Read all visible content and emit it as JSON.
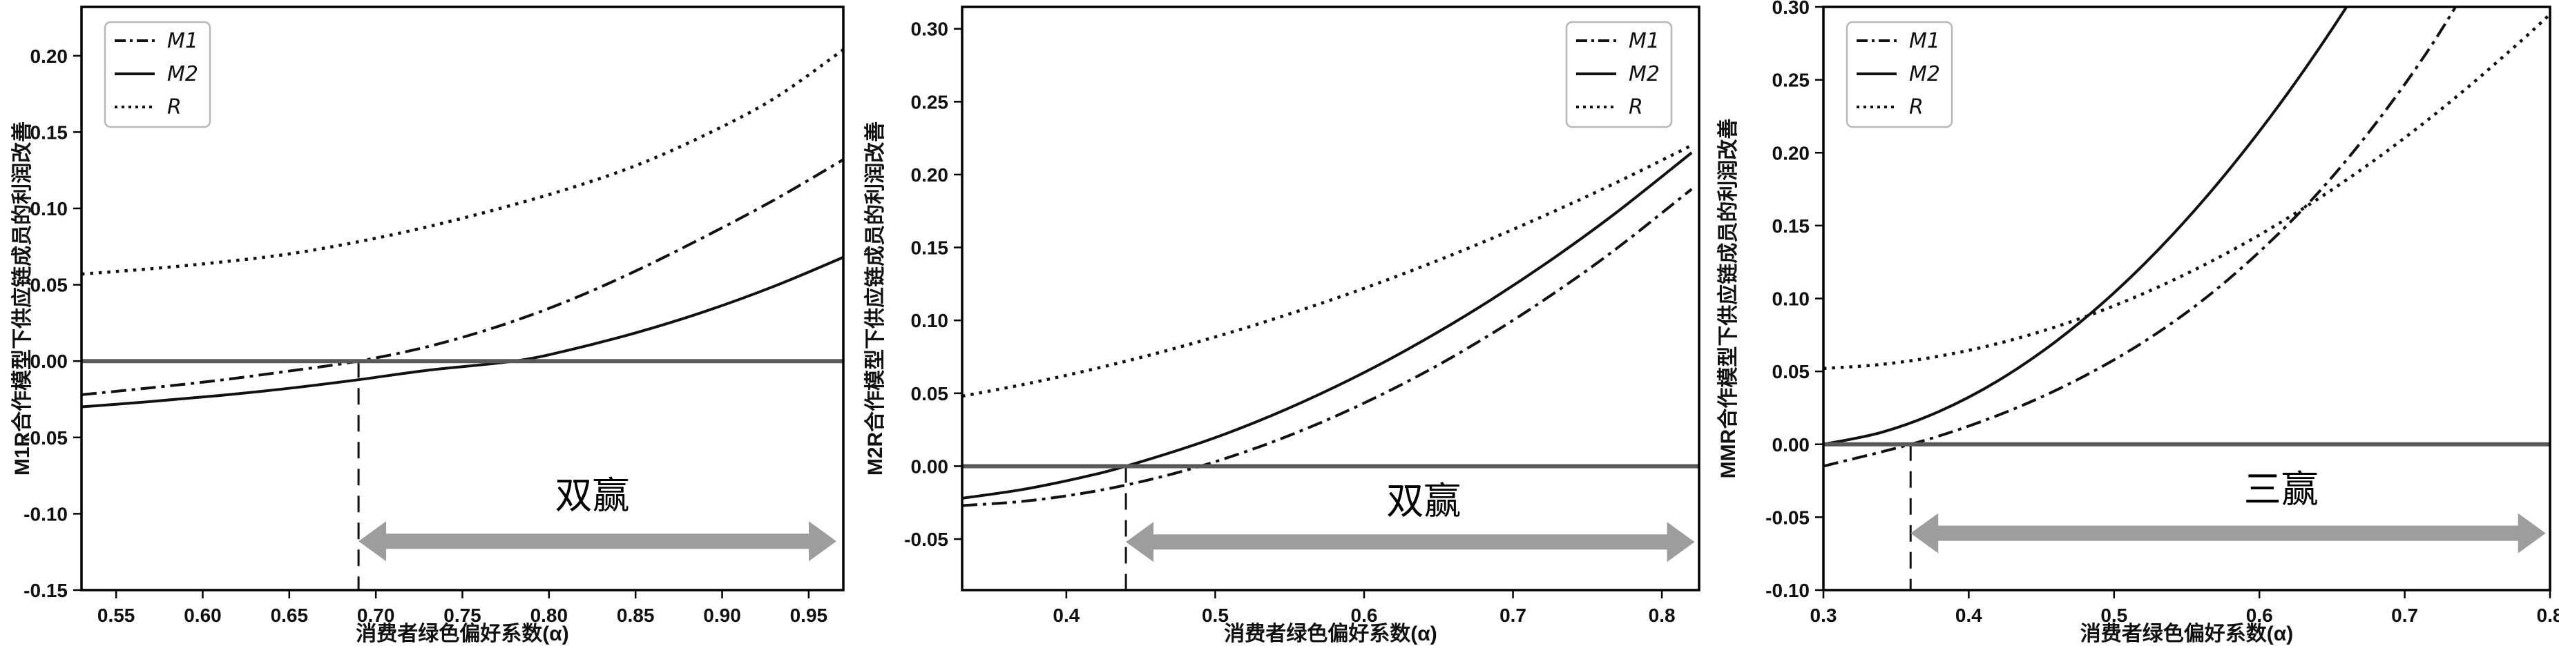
{
  "figure_title": "",
  "colors": {
    "curve": "#111111",
    "zero_line": "#5a5a5a",
    "dashed_line": "#111111",
    "arrow": "#9d9d9d",
    "legend_border": "#b8b8b8",
    "text": "#111111",
    "background": "#ffffff"
  },
  "legend_entries": [
    "M1",
    "M2",
    "R"
  ],
  "chart_data": [
    {
      "type": "line",
      "ylabel": "M1R合作模型下供应链成员的利润改善",
      "xlabel": "消费者绿色偏好系数(α)",
      "xlim": [
        0.53,
        0.97
      ],
      "ylim": [
        -0.15,
        0.232
      ],
      "grid": false,
      "legend_position": "top-left",
      "xticks": {
        "values": [
          0.55,
          0.6,
          0.65,
          0.7,
          0.75,
          0.8,
          0.85,
          0.9,
          0.95
        ],
        "labels": [
          "0.55",
          "0.60",
          "0.65",
          "0.70",
          "0.75",
          "0.80",
          "0.85",
          "0.90",
          "0.95"
        ]
      },
      "yticks": {
        "values": [
          -0.15,
          -0.1,
          -0.05,
          0.0,
          0.05,
          0.1,
          0.15,
          0.2
        ],
        "labels": [
          "-0.15",
          "-0.10",
          "-0.05",
          "0.00",
          "0.05",
          "0.10",
          "0.15",
          "0.20"
        ]
      },
      "zero_line": true,
      "dashed_vline_x": 0.69,
      "win_region": {
        "label": "双赢",
        "text_x": 0.825,
        "text_y": -0.088,
        "arrow_x1": 0.69,
        "arrow_x2": 0.966,
        "arrow_y": -0.118
      },
      "series": [
        {
          "name": "M1",
          "style": "dashdot",
          "points": [
            [
              0.53,
              -0.022
            ],
            [
              0.57,
              -0.0175
            ],
            [
              0.61,
              -0.0125
            ],
            [
              0.65,
              -0.0065
            ],
            [
              0.69,
              0.0
            ],
            [
              0.73,
              0.0095
            ],
            [
              0.77,
              0.0225
            ],
            [
              0.81,
              0.039
            ],
            [
              0.85,
              0.059
            ],
            [
              0.89,
              0.0815
            ],
            [
              0.93,
              0.1055
            ],
            [
              0.97,
              0.132
            ]
          ]
        },
        {
          "name": "M2",
          "style": "solid",
          "points": [
            [
              0.53,
              -0.03
            ],
            [
              0.57,
              -0.0265
            ],
            [
              0.61,
              -0.0225
            ],
            [
              0.65,
              -0.0178
            ],
            [
              0.69,
              -0.0122
            ],
            [
              0.73,
              -0.006
            ],
            [
              0.78,
              0.0
            ],
            [
              0.81,
              0.0068
            ],
            [
              0.85,
              0.0185
            ],
            [
              0.89,
              0.0325
            ],
            [
              0.93,
              0.049
            ],
            [
              0.97,
              0.068
            ]
          ]
        },
        {
          "name": "R",
          "style": "dotted",
          "points": [
            [
              0.53,
              0.057
            ],
            [
              0.57,
              0.0605
            ],
            [
              0.61,
              0.0648
            ],
            [
              0.65,
              0.0702
            ],
            [
              0.69,
              0.0782
            ],
            [
              0.73,
              0.088
            ],
            [
              0.77,
              0.0995
            ],
            [
              0.81,
              0.1125
            ],
            [
              0.85,
              0.128
            ],
            [
              0.89,
              0.148
            ],
            [
              0.93,
              0.172
            ],
            [
              0.97,
              0.204
            ]
          ]
        }
      ]
    },
    {
      "type": "line",
      "ylabel": "M2R合作模型下供应链成员的利润改善",
      "xlabel": "消费者绿色偏好系数(α)",
      "xlim": [
        0.33,
        0.825
      ],
      "ylim": [
        -0.085,
        0.315
      ],
      "grid": false,
      "legend_position": "top-right",
      "xticks": {
        "values": [
          0.4,
          0.5,
          0.6,
          0.7,
          0.8
        ],
        "labels": [
          "0.4",
          "0.5",
          "0.6",
          "0.7",
          "0.8"
        ]
      },
      "yticks": {
        "values": [
          -0.05,
          0.0,
          0.05,
          0.1,
          0.15,
          0.2,
          0.25,
          0.3
        ],
        "labels": [
          "-0.05",
          "0.00",
          "0.05",
          "0.10",
          "0.15",
          "0.20",
          "0.25",
          "0.30"
        ]
      },
      "zero_line": true,
      "dashed_vline_x": 0.44,
      "win_region": {
        "label": "双赢",
        "text_x": 0.64,
        "text_y": -0.024,
        "arrow_x1": 0.44,
        "arrow_x2": 0.822,
        "arrow_y": -0.052
      },
      "series": [
        {
          "name": "M1",
          "style": "dashdot",
          "points": [
            [
              0.33,
              -0.027
            ],
            [
              0.37,
              -0.0242
            ],
            [
              0.41,
              -0.0188
            ],
            [
              0.45,
              -0.0107
            ],
            [
              0.49,
              0.0
            ],
            [
              0.53,
              0.0134
            ],
            [
              0.57,
              0.0295
            ],
            [
              0.61,
              0.0482
            ],
            [
              0.65,
              0.0695
            ],
            [
              0.69,
              0.0936
            ],
            [
              0.73,
              0.1203
            ],
            [
              0.77,
              0.1496
            ],
            [
              0.82,
              0.19
            ]
          ]
        },
        {
          "name": "M2",
          "style": "solid",
          "points": [
            [
              0.33,
              -0.022
            ],
            [
              0.37,
              -0.0161
            ],
            [
              0.41,
              -0.0078
            ],
            [
              0.44,
              0.0
            ],
            [
              0.49,
              0.016
            ],
            [
              0.53,
              0.0314
            ],
            [
              0.57,
              0.0493
            ],
            [
              0.61,
              0.0695
            ],
            [
              0.65,
              0.0922
            ],
            [
              0.69,
              0.1172
            ],
            [
              0.73,
              0.1446
            ],
            [
              0.77,
              0.1744
            ],
            [
              0.82,
              0.215
            ]
          ]
        },
        {
          "name": "R",
          "style": "dotted",
          "points": [
            [
              0.33,
              0.048
            ],
            [
              0.37,
              0.0558
            ],
            [
              0.41,
              0.0646
            ],
            [
              0.45,
              0.0746
            ],
            [
              0.49,
              0.0857
            ],
            [
              0.53,
              0.0979
            ],
            [
              0.57,
              0.1113
            ],
            [
              0.61,
              0.1257
            ],
            [
              0.65,
              0.1413
            ],
            [
              0.69,
              0.158
            ],
            [
              0.73,
              0.1759
            ],
            [
              0.77,
              0.1948
            ],
            [
              0.82,
              0.22
            ]
          ]
        }
      ]
    },
    {
      "type": "line",
      "ylabel": "MMR合作模型下供应链成员的利润改善",
      "xlabel": "消费者绿色偏好系数(α)",
      "xlim": [
        0.3,
        0.8
      ],
      "ylim": [
        -0.1,
        0.3
      ],
      "grid": false,
      "legend_position": "top-left",
      "xticks": {
        "values": [
          0.3,
          0.4,
          0.5,
          0.6,
          0.7,
          0.8
        ],
        "labels": [
          "0.3",
          "0.4",
          "0.5",
          "0.6",
          "0.7",
          "0.8"
        ]
      },
      "yticks": {
        "values": [
          -0.1,
          -0.05,
          0.0,
          0.05,
          0.1,
          0.15,
          0.2,
          0.25,
          0.3
        ],
        "labels": [
          "-0.10",
          "-0.05",
          "0.00",
          "0.05",
          "0.10",
          "0.15",
          "0.20",
          "0.25",
          "0.30"
        ]
      },
      "zero_line": true,
      "dashed_vline_x": 0.36,
      "win_region": {
        "label": "三赢",
        "text_x": 0.615,
        "text_y": -0.031,
        "arrow_x1": 0.36,
        "arrow_x2": 0.797,
        "arrow_y": -0.061
      },
      "series": [
        {
          "name": "M1",
          "style": "dashdot",
          "points": [
            [
              0.3,
              -0.015
            ],
            [
              0.36,
              0.0
            ],
            [
              0.4,
              0.0125
            ],
            [
              0.44,
              0.028
            ],
            [
              0.48,
              0.047
            ],
            [
              0.52,
              0.07
            ],
            [
              0.56,
              0.098
            ],
            [
              0.6,
              0.132
            ],
            [
              0.64,
              0.172
            ],
            [
              0.68,
              0.22
            ],
            [
              0.72,
              0.276
            ],
            [
              0.76,
              0.342
            ]
          ]
        },
        {
          "name": "M2",
          "style": "solid",
          "points": [
            [
              0.3,
              0.0
            ],
            [
              0.34,
              0.0082
            ],
            [
              0.38,
              0.0227
            ],
            [
              0.42,
              0.0435
            ],
            [
              0.46,
              0.0706
            ],
            [
              0.5,
              0.1039
            ],
            [
              0.54,
              0.1435
            ],
            [
              0.58,
              0.1894
            ],
            [
              0.62,
              0.2415
            ],
            [
              0.66,
              0.3
            ],
            [
              0.7,
              0.3647
            ]
          ]
        },
        {
          "name": "R",
          "style": "dotted",
          "points": [
            [
              0.3,
              0.052
            ],
            [
              0.34,
              0.0548
            ],
            [
              0.38,
              0.0605
            ],
            [
              0.42,
              0.0691
            ],
            [
              0.46,
              0.0806
            ],
            [
              0.5,
              0.095
            ],
            [
              0.54,
              0.1123
            ],
            [
              0.58,
              0.1324
            ],
            [
              0.62,
              0.1555
            ],
            [
              0.66,
              0.1814
            ],
            [
              0.7,
              0.2102
            ],
            [
              0.74,
              0.242
            ],
            [
              0.78,
              0.2766
            ],
            [
              0.8,
              0.295
            ]
          ]
        }
      ]
    }
  ]
}
